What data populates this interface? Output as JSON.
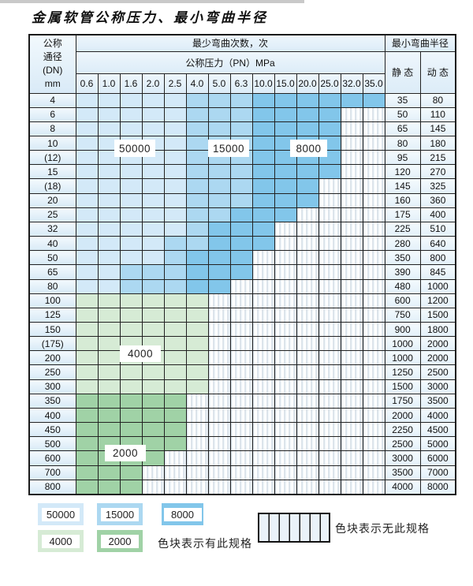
{
  "page": {
    "title": "金属软管公称压力、最小弯曲半径"
  },
  "table": {
    "corner": {
      "line1": "公称",
      "line2": "通径",
      "line3": "(DN)",
      "line4": "mm"
    },
    "bend_header": "最少弯曲次数，次",
    "pressure_header": "公称压力（PN）MPa",
    "radius_header": "最小弯曲半径",
    "static_header": "静 态",
    "dynamic_header": "动 态",
    "pressure_columns": [
      "0.6",
      "1.0",
      "1.6",
      "2.0",
      "2.5",
      "4.0",
      "5.0",
      "6.3",
      "10.0",
      "15.0",
      "20.0",
      "25.0",
      "32.0",
      "35.0"
    ],
    "cell_code_meaning": {
      "L": "50000",
      "M": "15000",
      "D": "8000",
      "G": "4000",
      "E": "2000",
      "H": "no-spec"
    },
    "rows": [
      {
        "dn": "4",
        "cells": "LLLLLMMMDDDDDD",
        "static": "35",
        "dynamic": "80"
      },
      {
        "dn": "6",
        "cells": "LLLLLMMMDDDDHH",
        "static": "50",
        "dynamic": "110"
      },
      {
        "dn": "8",
        "cells": "LLLLLMMMDDDDHH",
        "static": "65",
        "dynamic": "145"
      },
      {
        "dn": "10",
        "cells": "LLLLLMMMDDDDHH",
        "static": "80",
        "dynamic": "180"
      },
      {
        "dn": "(12)",
        "cells": "LLLLLMMMDDDDHH",
        "static": "95",
        "dynamic": "215"
      },
      {
        "dn": "15",
        "cells": "LLLLLMMMDDDDHH",
        "static": "120",
        "dynamic": "270"
      },
      {
        "dn": "(18)",
        "cells": "LLLLLMMMDDDHHH",
        "static": "145",
        "dynamic": "325"
      },
      {
        "dn": "20",
        "cells": "LLLLLMMMDDDHHH",
        "static": "160",
        "dynamic": "360"
      },
      {
        "dn": "25",
        "cells": "LLLLLMMDDDHHHH",
        "static": "175",
        "dynamic": "400"
      },
      {
        "dn": "32",
        "cells": "LLLLLMDDDHHHHH",
        "static": "225",
        "dynamic": "510"
      },
      {
        "dn": "40",
        "cells": "LLLLMMDDDHHHHH",
        "static": "280",
        "dynamic": "640"
      },
      {
        "dn": "50",
        "cells": "LLLLMDDDHHHHHH",
        "static": "350",
        "dynamic": "800"
      },
      {
        "dn": "65",
        "cells": "LLMMMDDDHHHHHH",
        "static": "390",
        "dynamic": "845"
      },
      {
        "dn": "80",
        "cells": "LLMMMDDHHHHHHH",
        "static": "480",
        "dynamic": "1000"
      },
      {
        "dn": "100",
        "cells": "GGGGGGHHHHHHHH",
        "static": "600",
        "dynamic": "1200"
      },
      {
        "dn": "125",
        "cells": "GGGGGGHHHHHHHH",
        "static": "750",
        "dynamic": "1500"
      },
      {
        "dn": "150",
        "cells": "GGGGGGHHHHHHHH",
        "static": "900",
        "dynamic": "1800"
      },
      {
        "dn": "(175)",
        "cells": "GGGGGGHHHHHHHH",
        "static": "1000",
        "dynamic": "2000"
      },
      {
        "dn": "200",
        "cells": "GGGGGGHHHHHHHH",
        "static": "1000",
        "dynamic": "2000"
      },
      {
        "dn": "250",
        "cells": "GGGGGGHHHHHHHH",
        "static": "1250",
        "dynamic": "2500"
      },
      {
        "dn": "300",
        "cells": "GGGGGGHHHHHHHH",
        "static": "1500",
        "dynamic": "3000"
      },
      {
        "dn": "350",
        "cells": "EEEEEHHHHHHHHH",
        "static": "1750",
        "dynamic": "3500"
      },
      {
        "dn": "400",
        "cells": "EEEEEHHHHHHHHH",
        "static": "2000",
        "dynamic": "4000"
      },
      {
        "dn": "450",
        "cells": "EEEEEHHHHHHHHH",
        "static": "2250",
        "dynamic": "4500"
      },
      {
        "dn": "500",
        "cells": "EEEEEHHHHHHHHH",
        "static": "2500",
        "dynamic": "5000"
      },
      {
        "dn": "600",
        "cells": "EEEEHHHHHHHHHH",
        "static": "3000",
        "dynamic": "6000"
      },
      {
        "dn": "700",
        "cells": "EEEHHHHHHHHHHH",
        "static": "3500",
        "dynamic": "7000"
      },
      {
        "dn": "800",
        "cells": "EEEHHHHHHHHHHH",
        "static": "4000",
        "dynamic": "8000"
      }
    ]
  },
  "region_labels": {
    "r50000": "50000",
    "r15000": "15000",
    "r8000": "8000",
    "r4000": "4000",
    "r2000": "2000"
  },
  "legend": {
    "sw50000": "50000",
    "sw15000": "15000",
    "sw8000": "8000",
    "sw4000": "4000",
    "sw2000": "2000",
    "has_spec_text": "色块表示有此规格",
    "no_spec_text": "色块表示无此规格"
  },
  "colors": {
    "c50000": "#d3e9f8",
    "c15000": "#acd8f1",
    "c8000": "#82c6ea",
    "c4000": "#d6ebd5",
    "c2000": "#a0d2a6"
  }
}
